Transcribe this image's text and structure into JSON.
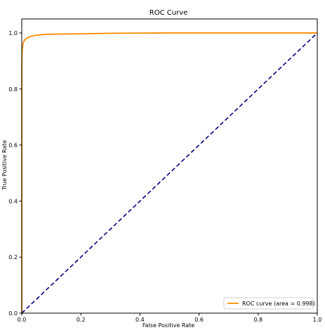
{
  "chart_data": {
    "type": "line",
    "title": "ROC Curve",
    "xlabel": "False Positive Rate",
    "ylabel": "True Positive Rate",
    "xlim": [
      0.0,
      1.0
    ],
    "ylim": [
      0.0,
      1.05
    ],
    "x_ticks": [
      "0.0",
      "0.2",
      "0.4",
      "0.6",
      "0.8",
      "1.0"
    ],
    "y_ticks": [
      "0.0",
      "0.2",
      "0.4",
      "0.6",
      "0.8",
      "1.0"
    ],
    "grid": false,
    "legend_position": "lower-right",
    "series": [
      {
        "name": "ROC curve (area = 0.998)",
        "color": "#ff8c00",
        "style": "solid",
        "x": [
          0.0,
          0.0,
          0.001,
          0.002,
          0.004,
          0.007,
          0.01,
          0.015,
          0.02,
          0.03,
          0.05,
          0.08,
          0.12,
          0.2,
          0.3,
          0.5,
          0.7,
          1.0
        ],
        "y": [
          0.0,
          0.86,
          0.92,
          0.945,
          0.96,
          0.97,
          0.975,
          0.98,
          0.983,
          0.988,
          0.992,
          0.995,
          0.996,
          0.997,
          0.999,
          1.0,
          1.0,
          1.0
        ]
      },
      {
        "name": "",
        "color": "#000080",
        "style": "dashed",
        "x": [
          0.0,
          1.0
        ],
        "y": [
          0.0,
          1.0
        ]
      }
    ]
  }
}
